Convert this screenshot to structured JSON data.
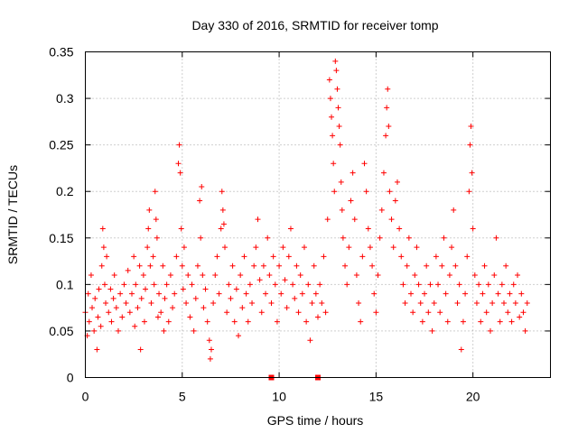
{
  "chart_data": {
    "type": "scatter",
    "title": "Day 330 of 2016, SRMTID for receiver tomp",
    "xlabel": "GPS time / hours",
    "ylabel": "SRMTID / TECUs",
    "xlim": [
      0,
      24
    ],
    "ylim": [
      0,
      0.35
    ],
    "grid": true,
    "marker": "plus",
    "x_ticks": [
      0,
      5,
      10,
      15,
      20
    ],
    "x_tick_labels": [
      "0",
      "5",
      "10",
      "15",
      "20"
    ],
    "y_ticks": [
      0,
      0.05,
      0.1,
      0.15,
      0.2,
      0.25,
      0.3,
      0.35
    ],
    "y_tick_labels": [
      "0",
      "0.05",
      "0.1",
      "0.15",
      "0.2",
      "0.25",
      "0.3",
      "0.35"
    ],
    "series": [
      {
        "name": "SRMTID",
        "color": "#ff0000",
        "points": [
          [
            0.0,
            0.07
          ],
          [
            0.1,
            0.045
          ],
          [
            0.15,
            0.09
          ],
          [
            0.2,
            0.06
          ],
          [
            0.3,
            0.11
          ],
          [
            0.35,
            0.075
          ],
          [
            0.45,
            0.05
          ],
          [
            0.5,
            0.085
          ],
          [
            0.6,
            0.03
          ],
          [
            0.65,
            0.065
          ],
          [
            0.7,
            0.095
          ],
          [
            0.8,
            0.055
          ],
          [
            0.85,
            0.12
          ],
          [
            0.9,
            0.16
          ],
          [
            0.95,
            0.14
          ],
          [
            1.0,
            0.1
          ],
          [
            1.05,
            0.08
          ],
          [
            1.1,
            0.13
          ],
          [
            1.2,
            0.07
          ],
          [
            1.3,
            0.095
          ],
          [
            1.35,
            0.06
          ],
          [
            1.45,
            0.085
          ],
          [
            1.5,
            0.11
          ],
          [
            1.6,
            0.075
          ],
          [
            1.7,
            0.05
          ],
          [
            1.8,
            0.09
          ],
          [
            1.9,
            0.065
          ],
          [
            2.0,
            0.1
          ],
          [
            2.1,
            0.08
          ],
          [
            2.2,
            0.115
          ],
          [
            2.3,
            0.07
          ],
          [
            2.4,
            0.09
          ],
          [
            2.5,
            0.13
          ],
          [
            2.55,
            0.055
          ],
          [
            2.6,
            0.1
          ],
          [
            2.7,
            0.075
          ],
          [
            2.8,
            0.12
          ],
          [
            2.85,
            0.03
          ],
          [
            2.9,
            0.085
          ],
          [
            3.0,
            0.11
          ],
          [
            3.05,
            0.06
          ],
          [
            3.1,
            0.095
          ],
          [
            3.2,
            0.14
          ],
          [
            3.25,
            0.16
          ],
          [
            3.3,
            0.18
          ],
          [
            3.35,
            0.12
          ],
          [
            3.4,
            0.08
          ],
          [
            3.5,
            0.13
          ],
          [
            3.55,
            0.1
          ],
          [
            3.6,
            0.2
          ],
          [
            3.65,
            0.17
          ],
          [
            3.7,
            0.15
          ],
          [
            3.75,
            0.065
          ],
          [
            3.8,
            0.09
          ],
          [
            3.9,
            0.07
          ],
          [
            4.0,
            0.12
          ],
          [
            4.05,
            0.05
          ],
          [
            4.1,
            0.085
          ],
          [
            4.2,
            0.1
          ],
          [
            4.3,
            0.06
          ],
          [
            4.4,
            0.11
          ],
          [
            4.5,
            0.075
          ],
          [
            4.6,
            0.09
          ],
          [
            4.7,
            0.13
          ],
          [
            4.8,
            0.23
          ],
          [
            4.85,
            0.25
          ],
          [
            4.9,
            0.22
          ],
          [
            4.95,
            0.16
          ],
          [
            5.0,
            0.12
          ],
          [
            5.05,
            0.095
          ],
          [
            5.1,
            0.14
          ],
          [
            5.2,
            0.08
          ],
          [
            5.3,
            0.11
          ],
          [
            5.4,
            0.065
          ],
          [
            5.5,
            0.1
          ],
          [
            5.6,
            0.05
          ],
          [
            5.7,
            0.085
          ],
          [
            5.8,
            0.12
          ],
          [
            5.9,
            0.19
          ],
          [
            5.95,
            0.15
          ],
          [
            6.0,
            0.205
          ],
          [
            6.05,
            0.11
          ],
          [
            6.1,
            0.075
          ],
          [
            6.2,
            0.095
          ],
          [
            6.3,
            0.06
          ],
          [
            6.4,
            0.04
          ],
          [
            6.45,
            0.02
          ],
          [
            6.5,
            0.03
          ],
          [
            6.6,
            0.08
          ],
          [
            6.7,
            0.11
          ],
          [
            6.8,
            0.13
          ],
          [
            6.9,
            0.09
          ],
          [
            7.0,
            0.16
          ],
          [
            7.05,
            0.2
          ],
          [
            7.1,
            0.18
          ],
          [
            7.15,
            0.165
          ],
          [
            7.2,
            0.14
          ],
          [
            7.3,
            0.07
          ],
          [
            7.4,
            0.1
          ],
          [
            7.5,
            0.085
          ],
          [
            7.6,
            0.12
          ],
          [
            7.7,
            0.06
          ],
          [
            7.8,
            0.095
          ],
          [
            7.9,
            0.045
          ],
          [
            8.0,
            0.11
          ],
          [
            8.1,
            0.075
          ],
          [
            8.2,
            0.13
          ],
          [
            8.3,
            0.09
          ],
          [
            8.4,
            0.06
          ],
          [
            8.5,
            0.1
          ],
          [
            8.6,
            0.08
          ],
          [
            8.7,
            0.12
          ],
          [
            8.8,
            0.14
          ],
          [
            8.9,
            0.17
          ],
          [
            9.0,
            0.105
          ],
          [
            9.1,
            0.07
          ],
          [
            9.2,
            0.12
          ],
          [
            9.3,
            0.09
          ],
          [
            9.4,
            0.15
          ],
          [
            9.5,
            0.11
          ],
          [
            9.6,
            0.08
          ],
          [
            9.7,
            0.13
          ],
          [
            9.8,
            0.1
          ],
          [
            9.9,
            0.06
          ],
          [
            10.0,
            0.12
          ],
          [
            10.1,
            0.09
          ],
          [
            10.2,
            0.14
          ],
          [
            10.3,
            0.105
          ],
          [
            10.4,
            0.075
          ],
          [
            10.5,
            0.13
          ],
          [
            10.6,
            0.16
          ],
          [
            10.7,
            0.1
          ],
          [
            10.8,
            0.085
          ],
          [
            10.9,
            0.12
          ],
          [
            11.0,
            0.07
          ],
          [
            11.1,
            0.11
          ],
          [
            11.2,
            0.09
          ],
          [
            11.3,
            0.14
          ],
          [
            11.4,
            0.06
          ],
          [
            11.5,
            0.1
          ],
          [
            11.6,
            0.04
          ],
          [
            11.7,
            0.08
          ],
          [
            11.8,
            0.12
          ],
          [
            11.9,
            0.09
          ],
          [
            12.0,
            0.065
          ],
          [
            12.1,
            0.1
          ],
          [
            12.2,
            0.08
          ],
          [
            12.3,
            0.13
          ],
          [
            12.4,
            0.07
          ],
          [
            12.5,
            0.17
          ],
          [
            12.6,
            0.32
          ],
          [
            12.65,
            0.3
          ],
          [
            12.7,
            0.28
          ],
          [
            12.75,
            0.26
          ],
          [
            12.8,
            0.23
          ],
          [
            12.85,
            0.2
          ],
          [
            12.9,
            0.34
          ],
          [
            12.95,
            0.33
          ],
          [
            13.0,
            0.31
          ],
          [
            13.05,
            0.29
          ],
          [
            13.1,
            0.27
          ],
          [
            13.15,
            0.25
          ],
          [
            13.2,
            0.21
          ],
          [
            13.25,
            0.18
          ],
          [
            13.3,
            0.15
          ],
          [
            13.4,
            0.12
          ],
          [
            13.5,
            0.1
          ],
          [
            13.6,
            0.14
          ],
          [
            13.7,
            0.19
          ],
          [
            13.8,
            0.22
          ],
          [
            13.9,
            0.17
          ],
          [
            14.0,
            0.11
          ],
          [
            14.1,
            0.08
          ],
          [
            14.2,
            0.06
          ],
          [
            14.3,
            0.13
          ],
          [
            14.4,
            0.23
          ],
          [
            14.5,
            0.2
          ],
          [
            14.6,
            0.16
          ],
          [
            14.7,
            0.14
          ],
          [
            14.8,
            0.12
          ],
          [
            14.9,
            0.09
          ],
          [
            15.0,
            0.07
          ],
          [
            15.1,
            0.11
          ],
          [
            15.2,
            0.15
          ],
          [
            15.3,
            0.18
          ],
          [
            15.4,
            0.22
          ],
          [
            15.5,
            0.26
          ],
          [
            15.55,
            0.29
          ],
          [
            15.6,
            0.31
          ],
          [
            15.65,
            0.27
          ],
          [
            15.7,
            0.2
          ],
          [
            15.8,
            0.17
          ],
          [
            15.9,
            0.14
          ],
          [
            16.0,
            0.19
          ],
          [
            16.1,
            0.21
          ],
          [
            16.2,
            0.16
          ],
          [
            16.3,
            0.13
          ],
          [
            16.4,
            0.1
          ],
          [
            16.5,
            0.08
          ],
          [
            16.6,
            0.12
          ],
          [
            16.7,
            0.15
          ],
          [
            16.8,
            0.09
          ],
          [
            16.9,
            0.07
          ],
          [
            17.0,
            0.11
          ],
          [
            17.1,
            0.14
          ],
          [
            17.2,
            0.1
          ],
          [
            17.3,
            0.08
          ],
          [
            17.4,
            0.06
          ],
          [
            17.5,
            0.09
          ],
          [
            17.6,
            0.12
          ],
          [
            17.7,
            0.07
          ],
          [
            17.8,
            0.1
          ],
          [
            17.9,
            0.05
          ],
          [
            18.0,
            0.08
          ],
          [
            18.1,
            0.13
          ],
          [
            18.2,
            0.1
          ],
          [
            18.3,
            0.07
          ],
          [
            18.4,
            0.12
          ],
          [
            18.5,
            0.15
          ],
          [
            18.6,
            0.09
          ],
          [
            18.7,
            0.06
          ],
          [
            18.8,
            0.11
          ],
          [
            18.9,
            0.14
          ],
          [
            19.0,
            0.18
          ],
          [
            19.1,
            0.12
          ],
          [
            19.2,
            0.08
          ],
          [
            19.3,
            0.1
          ],
          [
            19.4,
            0.03
          ],
          [
            19.5,
            0.06
          ],
          [
            19.6,
            0.09
          ],
          [
            19.7,
            0.13
          ],
          [
            19.8,
            0.2
          ],
          [
            19.85,
            0.25
          ],
          [
            19.9,
            0.27
          ],
          [
            19.95,
            0.22
          ],
          [
            20.0,
            0.16
          ],
          [
            20.1,
            0.11
          ],
          [
            20.2,
            0.08
          ],
          [
            20.3,
            0.1
          ],
          [
            20.4,
            0.06
          ],
          [
            20.5,
            0.09
          ],
          [
            20.6,
            0.12
          ],
          [
            20.7,
            0.07
          ],
          [
            20.8,
            0.1
          ],
          [
            20.9,
            0.05
          ],
          [
            21.0,
            0.08
          ],
          [
            21.1,
            0.11
          ],
          [
            21.2,
            0.15
          ],
          [
            21.3,
            0.09
          ],
          [
            21.4,
            0.06
          ],
          [
            21.5,
            0.1
          ],
          [
            21.6,
            0.08
          ],
          [
            21.7,
            0.12
          ],
          [
            21.8,
            0.07
          ],
          [
            21.9,
            0.09
          ],
          [
            22.0,
            0.06
          ],
          [
            22.1,
            0.1
          ],
          [
            22.2,
            0.08
          ],
          [
            22.3,
            0.11
          ],
          [
            22.4,
            0.065
          ],
          [
            22.5,
            0.09
          ],
          [
            22.6,
            0.07
          ],
          [
            22.7,
            0.05
          ],
          [
            22.8,
            0.08
          ]
        ]
      }
    ],
    "gap_markers": {
      "color": "#ff0000",
      "x": [
        9.6,
        12.0
      ]
    }
  }
}
